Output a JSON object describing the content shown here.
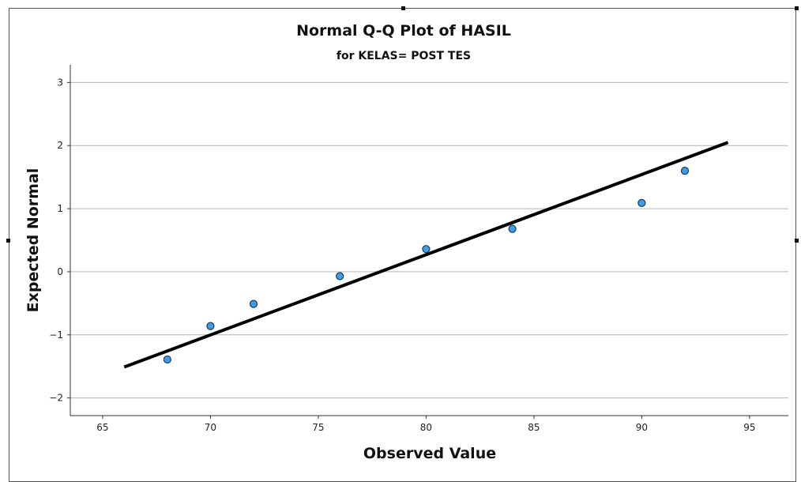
{
  "chart_data": {
    "type": "scatter",
    "title": "Normal Q-Q Plot of HASIL",
    "subtitle": "for KELAS= POST TES",
    "xlabel": "Observed Value",
    "ylabel": "Expected Normal",
    "xlim": [
      63.5,
      96.8
    ],
    "ylim": [
      -2.28,
      3.28
    ],
    "xticks": [
      65,
      70,
      75,
      80,
      85,
      90,
      95
    ],
    "yticks": [
      -2,
      -1,
      0,
      1,
      2,
      3
    ],
    "ytick_labels": [
      "−2",
      "−1",
      "0",
      "1",
      "2",
      "3"
    ],
    "grid": "horizontal",
    "points": [
      {
        "x": 68,
        "y": -1.39
      },
      {
        "x": 70,
        "y": -0.86
      },
      {
        "x": 72,
        "y": -0.51
      },
      {
        "x": 76,
        "y": -0.07
      },
      {
        "x": 80,
        "y": 0.36
      },
      {
        "x": 84,
        "y": 0.68
      },
      {
        "x": 90,
        "y": 1.09
      },
      {
        "x": 92,
        "y": 1.6
      }
    ],
    "reference_line": {
      "x": [
        66.0,
        94.0
      ],
      "y": [
        -1.51,
        2.05
      ]
    },
    "colors": {
      "point_fill": "#3d9ee6",
      "point_stroke": "#1a3a5c",
      "line": "#000000",
      "grid": "#b4b4b4"
    }
  }
}
